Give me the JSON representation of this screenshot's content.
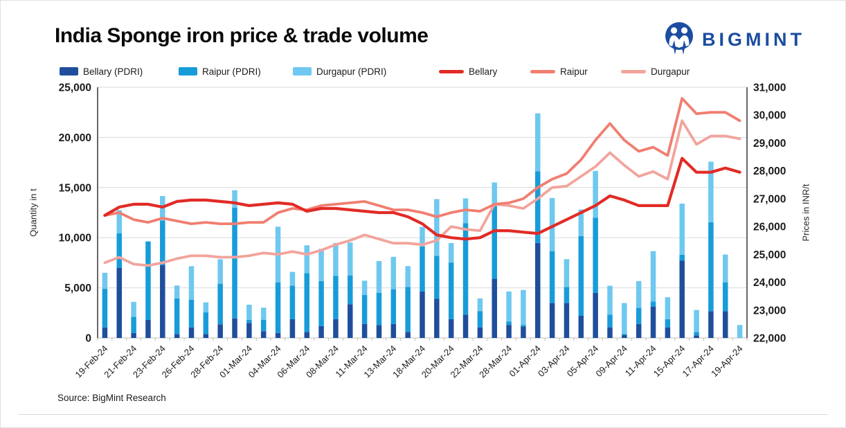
{
  "header": {
    "title": "India Sponge iron price & trade volume",
    "brand": "BIGMINT"
  },
  "legend": [
    {
      "label": "Bellary (PDRI)",
      "type": "bar",
      "color": "#1f4e9c"
    },
    {
      "label": "Raipur (PDRI)",
      "type": "bar",
      "color": "#189cd9"
    },
    {
      "label": "Durgapur (PDRI)",
      "type": "bar",
      "color": "#6fc8ef"
    },
    {
      "label": "Bellary",
      "type": "line",
      "color": "#e12b26"
    },
    {
      "label": "Raipur",
      "type": "line",
      "color": "#f07e70"
    },
    {
      "label": "Durgapur",
      "type": "line",
      "color": "#f2a49c"
    }
  ],
  "footer": {
    "source": "Source: BigMint Research"
  },
  "brand_color": "#1b4da1",
  "chart_data": {
    "type": "combo-stacked-bar-and-line",
    "x_labels": [
      "19-Feb-24",
      "",
      "21-Feb-24",
      "",
      "23-Feb-24",
      "",
      "26-Feb-24",
      "",
      "28-Feb-24",
      "",
      "01-Mar-24",
      "",
      "04-Mar-24",
      "",
      "06-Mar-24",
      "",
      "08-Mar-24",
      "",
      "11-Mar-24",
      "",
      "13-Mar-24",
      "",
      "18-Mar-24",
      "",
      "20-Mar-24",
      "",
      "22-Mar-24",
      "",
      "28-Mar-24",
      "",
      "01-Apr-24",
      "",
      "03-Apr-24",
      "",
      "05-Apr-24",
      "",
      "09-Apr-24",
      "",
      "11-Apr-24",
      "",
      "15-Apr-24",
      "",
      "17-Apr-24",
      "",
      "19-Apr-24"
    ],
    "bar_series": [
      {
        "name": "Bellary (PDRI)",
        "axis": "left",
        "color": "#1f4e9c",
        "values": [
          1050,
          7000,
          500,
          1800,
          7250,
          400,
          1050,
          400,
          1360,
          1950,
          1500,
          670,
          500,
          1870,
          600,
          1180,
          1870,
          3360,
          1400,
          1290,
          1400,
          600,
          4630,
          3900,
          1870,
          2330,
          1060,
          5900,
          1300,
          1150,
          9470,
          3480,
          3480,
          2210,
          4510,
          1060,
          300,
          1400,
          3130,
          1060,
          7700,
          260,
          2670,
          2670,
          0
        ]
      },
      {
        "name": "Raipur (PDRI)",
        "axis": "left",
        "color": "#189cd9",
        "values": [
          3850,
          3450,
          1600,
          7800,
          4450,
          3550,
          2770,
          2150,
          4050,
          11050,
          300,
          1150,
          5050,
          3340,
          5870,
          4490,
          4330,
          2880,
          2880,
          3220,
          3460,
          4490,
          4490,
          4300,
          5650,
          9100,
          1620,
          7260,
          350,
          150,
          7140,
          5180,
          1610,
          7950,
          7490,
          1270,
          100,
          1620,
          500,
          810,
          600,
          340,
          8870,
          2880,
          0
        ]
      },
      {
        "name": "Durgapur (PDRI)",
        "axis": "left",
        "color": "#6fc8ef",
        "values": [
          1600,
          2300,
          1500,
          50,
          2450,
          1280,
          3340,
          1000,
          2440,
          1730,
          1520,
          1200,
          5550,
          1380,
          2770,
          3220,
          3270,
          3280,
          1430,
          3160,
          3230,
          2080,
          1960,
          5650,
          1950,
          2490,
          1260,
          2350,
          2980,
          3490,
          5790,
          5300,
          2770,
          2650,
          4660,
          2880,
          3080,
          2650,
          5030,
          2190,
          5100,
          2190,
          6040,
          2770,
          1300
        ]
      }
    ],
    "line_series": [
      {
        "name": "Durgapur",
        "axis": "right",
        "color": "#f2a49c",
        "width": 3.8,
        "values": [
          24700,
          24900,
          24650,
          24600,
          24700,
          24850,
          24950,
          24950,
          24900,
          24900,
          24950,
          25050,
          25000,
          25100,
          25000,
          25150,
          25350,
          25500,
          25700,
          25550,
          25400,
          25400,
          25350,
          25500,
          26000,
          25900,
          25850,
          26800,
          26750,
          26650,
          27000,
          27400,
          27450,
          27800,
          28150,
          28650,
          28200,
          27800,
          27975,
          27700,
          29800,
          28950,
          29250,
          29250,
          29150
        ]
      },
      {
        "name": "Raipur",
        "axis": "right",
        "color": "#f07e70",
        "width": 3.8,
        "values": [
          26400,
          26500,
          26250,
          26150,
          26300,
          26200,
          26100,
          26150,
          26100,
          26100,
          26150,
          26150,
          26500,
          26650,
          26600,
          26750,
          26800,
          26850,
          26900,
          26750,
          26600,
          26600,
          26500,
          26350,
          26500,
          26600,
          26550,
          26800,
          26850,
          27000,
          27400,
          27700,
          27900,
          28400,
          29100,
          29700,
          29100,
          28700,
          28850,
          28550,
          30600,
          30050,
          30100,
          30100,
          29800
        ]
      },
      {
        "name": "Bellary",
        "axis": "right",
        "color": "#e12b26",
        "width": 4.2,
        "values": [
          26400,
          26700,
          26800,
          26800,
          26700,
          26900,
          26950,
          26950,
          26900,
          26850,
          26750,
          26800,
          26850,
          26800,
          26550,
          26650,
          26650,
          26600,
          26550,
          26500,
          26500,
          26350,
          26100,
          25700,
          25600,
          25550,
          25600,
          25850,
          25850,
          25800,
          25750,
          26000,
          26250,
          26500,
          26750,
          27100,
          26950,
          26750,
          26750,
          26750,
          28450,
          27950,
          27950,
          28100,
          27950
        ]
      }
    ],
    "left_axis": {
      "title": "Quantity in t",
      "min": 0,
      "max": 25000,
      "step": 5000,
      "tick_labels": [
        "0",
        "5,000",
        "10,000",
        "15,000",
        "20,000",
        "25,000"
      ]
    },
    "right_axis": {
      "title": "Prices in INR/t",
      "min": 22000,
      "max": 31000,
      "step": 1000,
      "tick_labels": [
        "22,000",
        "23,000",
        "24,000",
        "25,000",
        "26,000",
        "27,000",
        "28,000",
        "29,000",
        "30,000",
        "31,000"
      ]
    },
    "grid": true,
    "legend_position": "top"
  }
}
